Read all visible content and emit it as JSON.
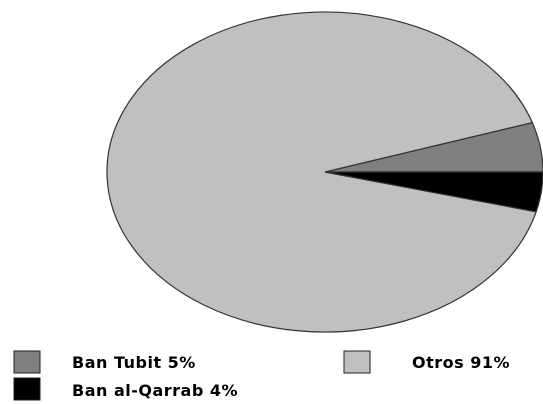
{
  "chart_data": {
    "type": "pie",
    "title": "",
    "slices": [
      {
        "name": "Ban Tubit",
        "label": "Ban Tubit 5%",
        "value": 5,
        "color": "#7f7f7f"
      },
      {
        "name": "Ban al-Qarrab",
        "label": "Ban al-Qarrab 4%",
        "value": 4,
        "color": "#000000"
      },
      {
        "name": "Otros",
        "label": "Otros 91%",
        "value": 91,
        "color": "#c0c0c0"
      }
    ],
    "start_angle_deg": 0,
    "direction": "counterclockwise",
    "legend_position": "bottom",
    "border_color": "#333333"
  }
}
